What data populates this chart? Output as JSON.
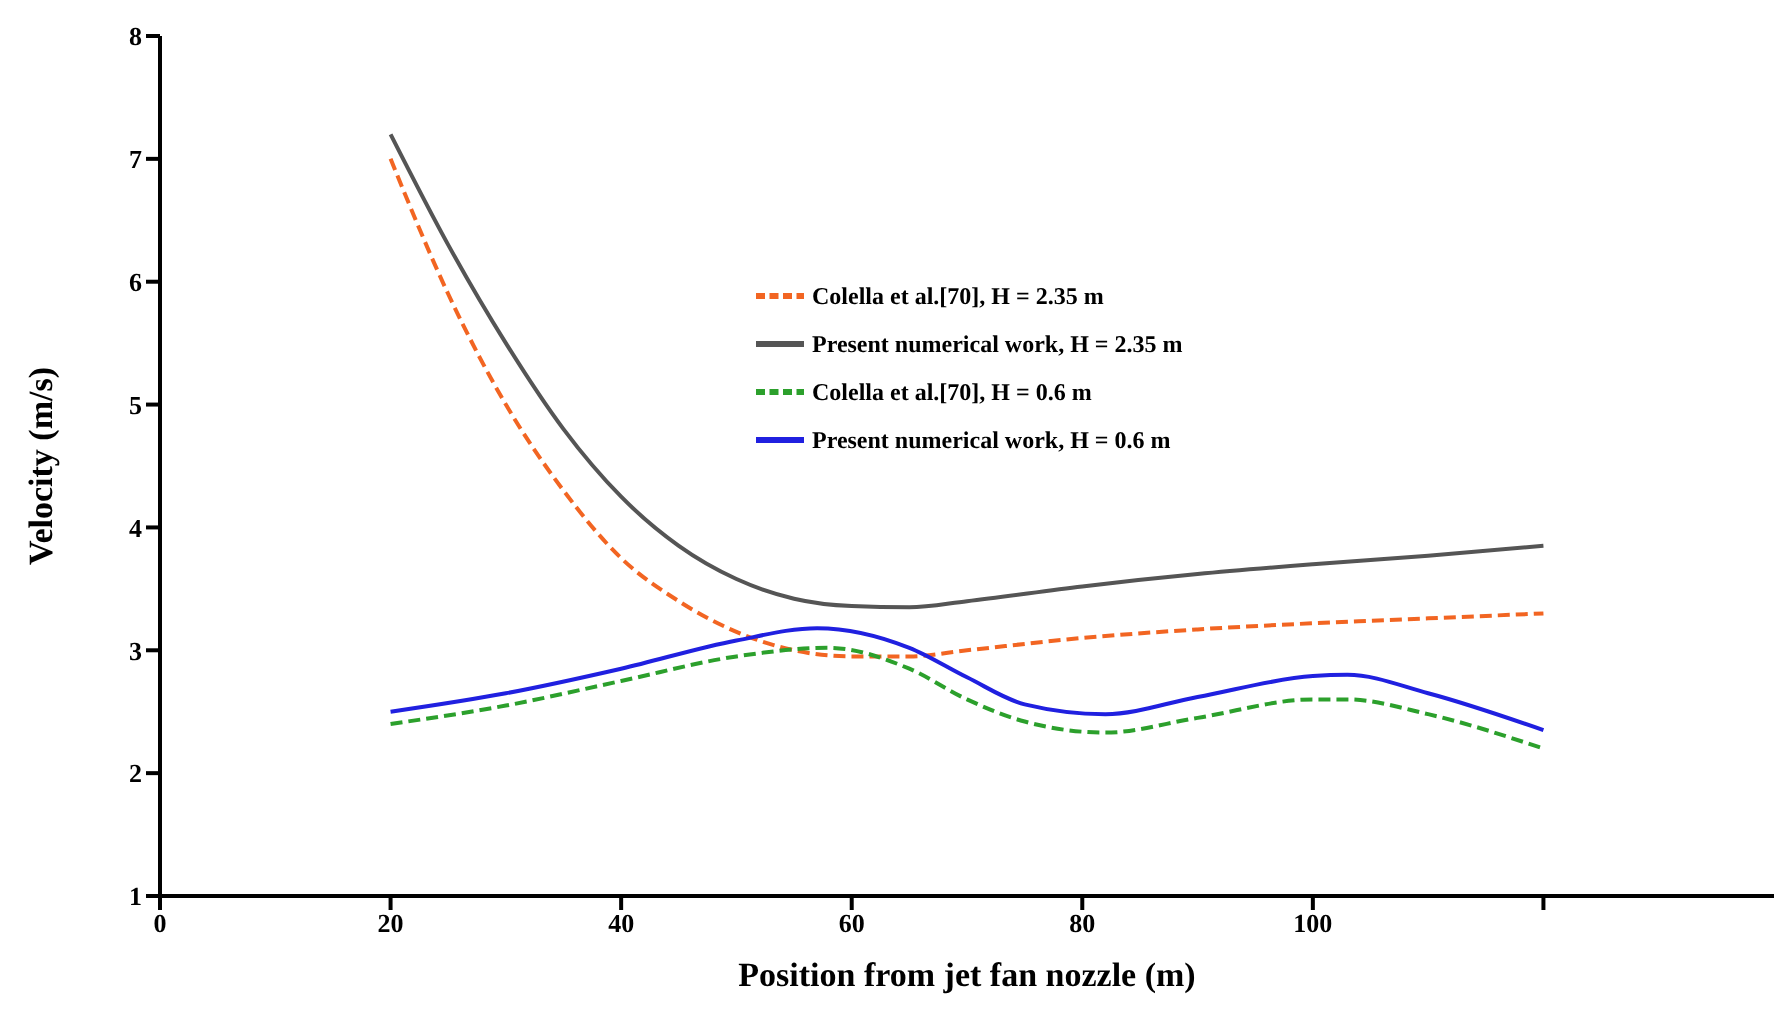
{
  "chart_data": {
    "type": "line",
    "xlabel": "Position from jet fan nozzle (m)",
    "ylabel": "Velocity (m/s)",
    "xlim": [
      0,
      140
    ],
    "xticks": [
      0,
      20,
      40,
      60,
      80,
      100,
      {
        "value": 120,
        "label": null
      }
    ],
    "ylim": [
      1,
      8
    ],
    "yticks": [
      1,
      2,
      3,
      4,
      5,
      6,
      7,
      8
    ],
    "grid": false,
    "legend": "top center",
    "marker": "none",
    "series": [
      {
        "name": "Colella et al.[70], H = 2.35 m",
        "color": "#f26522",
        "line_style": "dashed",
        "x": [
          20,
          25,
          30,
          35,
          40,
          45,
          50,
          55,
          60,
          65,
          70,
          80,
          90,
          100,
          110,
          120
        ],
        "values": [
          7.0,
          5.9,
          5.0,
          4.3,
          3.75,
          3.4,
          3.15,
          3.0,
          2.95,
          2.95,
          3.0,
          3.1,
          3.17,
          3.22,
          3.26,
          3.3
        ]
      },
      {
        "name": "Present numerical work, H = 2.35 m",
        "color": "#555555",
        "line_style": "solid",
        "x": [
          20,
          25,
          30,
          35,
          40,
          45,
          50,
          55,
          60,
          65,
          70,
          80,
          90,
          100,
          110,
          120
        ],
        "values": [
          7.2,
          6.3,
          5.5,
          4.8,
          4.25,
          3.85,
          3.58,
          3.42,
          3.36,
          3.35,
          3.4,
          3.52,
          3.62,
          3.7,
          3.77,
          3.85
        ]
      },
      {
        "name": "Colella et al.[70], H = 0.6 m",
        "color": "#2ca02c",
        "line_style": "dashed",
        "x": [
          20,
          30,
          40,
          50,
          58,
          65,
          70,
          75,
          82,
          90,
          100,
          103,
          110,
          120
        ],
        "values": [
          2.4,
          2.55,
          2.75,
          2.95,
          3.02,
          2.85,
          2.6,
          2.42,
          2.33,
          2.45,
          2.6,
          2.6,
          2.48,
          2.2
        ]
      },
      {
        "name": "Present numerical work, H = 0.6 m",
        "color": "#2020e0",
        "line_style": "solid",
        "x": [
          20,
          30,
          40,
          50,
          57,
          65,
          70,
          75,
          82,
          90,
          100,
          103,
          110,
          120
        ],
        "values": [
          2.5,
          2.65,
          2.85,
          3.08,
          3.18,
          3.02,
          2.78,
          2.56,
          2.48,
          2.62,
          2.79,
          2.8,
          2.65,
          2.35
        ]
      }
    ]
  }
}
